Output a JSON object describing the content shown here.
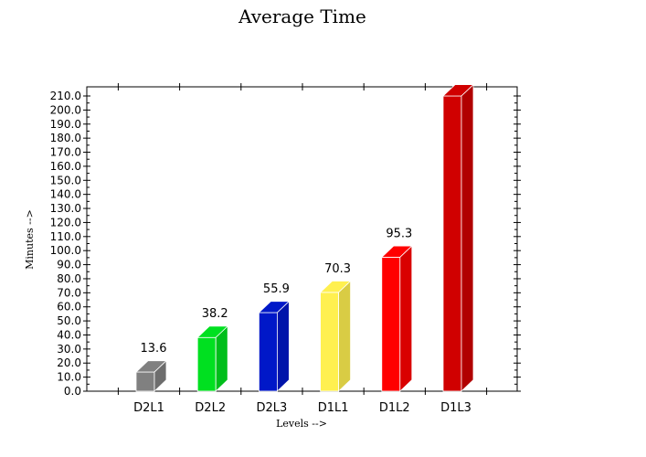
{
  "chart_data": {
    "type": "bar",
    "title": "Average Time",
    "xlabel": "Levels -->",
    "ylabel": "Minutes -->",
    "categories": [
      "D2L1",
      "D2L2",
      "D2L3",
      "D1L1",
      "D1L2",
      "D1L3"
    ],
    "values": [
      13.6,
      38.2,
      55.9,
      70.3,
      95.3,
      210.0
    ],
    "data_labels": [
      "13.6",
      "38.2",
      "55.9",
      "70.3",
      "95.3",
      ""
    ],
    "colors": [
      "#808080",
      "#00e020",
      "#0018c8",
      "#fff050",
      "#ff0000",
      "#d00000"
    ],
    "ylim": [
      0,
      210
    ],
    "ytick_step": 10,
    "grid": false,
    "bar_style": "3d"
  }
}
